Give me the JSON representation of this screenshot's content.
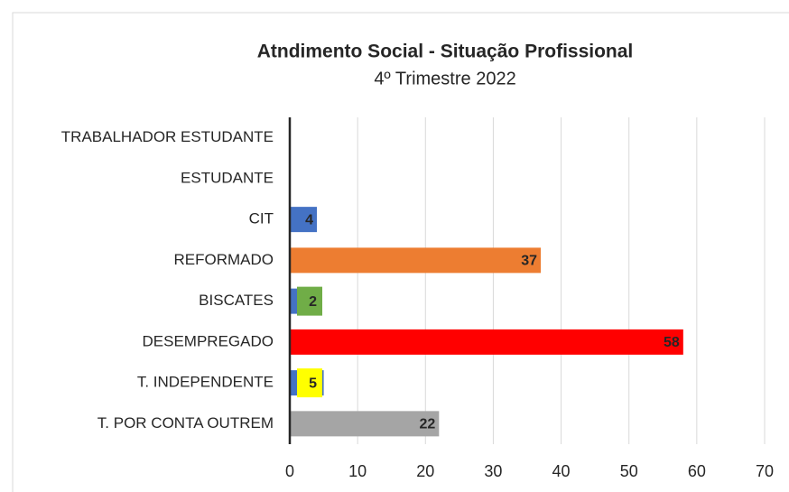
{
  "chart_data": {
    "type": "bar",
    "orientation": "horizontal",
    "title": "Atndimento Social - Situação Profissional",
    "subtitle": "4º Trimestre 2022",
    "categories": [
      "TRABALHADOR ESTUDANTE",
      "ESTUDANTE",
      "CIT",
      "REFORMADO",
      "BISCATES",
      "DESEMPREGADO",
      "T. INDEPENDENTE",
      "T. POR CONTA OUTREM"
    ],
    "values": [
      null,
      null,
      4,
      37,
      2,
      58,
      5,
      22
    ],
    "colors": [
      "#4472c4",
      "#4472c4",
      "#4472c4",
      "#ed7d31",
      "#4472c4",
      "#ff0000",
      "#4472c4",
      "#a5a5a5"
    ],
    "label_box_colors": [
      null,
      null,
      null,
      null,
      "#70ad47",
      null,
      "#ffff00",
      null
    ],
    "xlim": [
      0,
      70
    ],
    "xticks": [
      0,
      10,
      20,
      30,
      40,
      50,
      60,
      70
    ],
    "grid": true
  }
}
